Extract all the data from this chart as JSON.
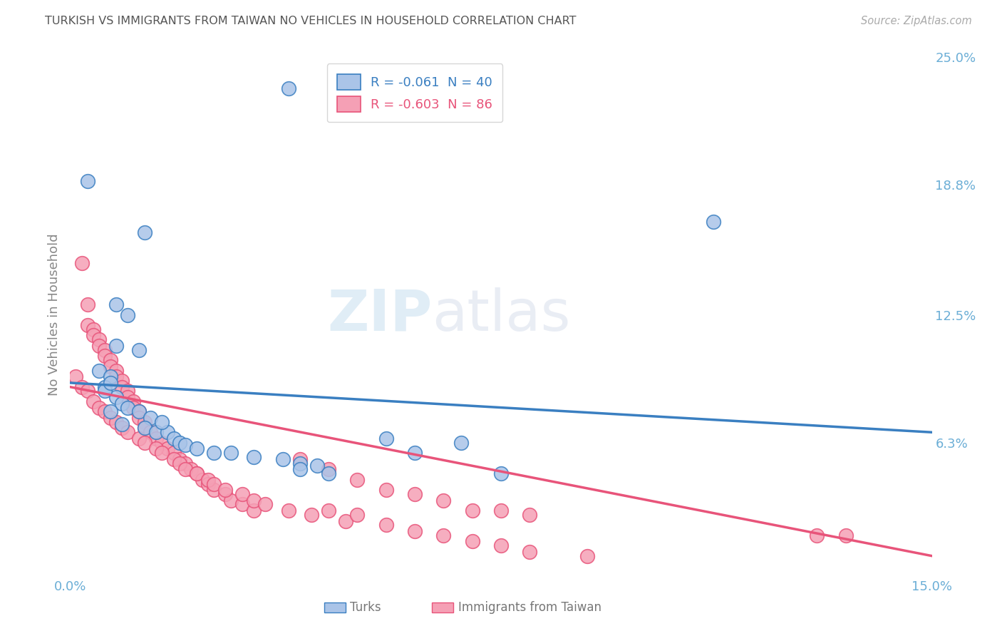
{
  "title": "TURKISH VS IMMIGRANTS FROM TAIWAN NO VEHICLES IN HOUSEHOLD CORRELATION CHART",
  "source": "Source: ZipAtlas.com",
  "ylabel_label": "No Vehicles in Household",
  "legend_entries": [
    {
      "label": "R = -0.061  N = 40",
      "color": "#aac4e8",
      "text_color": "#3a7fc1"
    },
    {
      "label": "R = -0.603  N = 86",
      "color": "#f5a0b5",
      "text_color": "#e8547a"
    }
  ],
  "watermark": "ZIPatlas",
  "background_color": "#ffffff",
  "turks_color": "#aac4e8",
  "taiwan_color": "#f5a0b5",
  "turks_line_color": "#3a7fc1",
  "taiwan_line_color": "#e8547a",
  "grid_color": "#cccccc",
  "title_color": "#555555",
  "axis_label_color": "#6baed6",
  "turks_scatter": [
    [
      0.003,
      0.19
    ],
    [
      0.038,
      0.235
    ],
    [
      0.013,
      0.165
    ],
    [
      0.008,
      0.13
    ],
    [
      0.01,
      0.125
    ],
    [
      0.008,
      0.11
    ],
    [
      0.005,
      0.098
    ],
    [
      0.007,
      0.095
    ],
    [
      0.006,
      0.09
    ],
    [
      0.008,
      0.085
    ],
    [
      0.009,
      0.082
    ],
    [
      0.01,
      0.08
    ],
    [
      0.007,
      0.078
    ],
    [
      0.012,
      0.078
    ],
    [
      0.014,
      0.075
    ],
    [
      0.009,
      0.072
    ],
    [
      0.013,
      0.07
    ],
    [
      0.015,
      0.068
    ],
    [
      0.017,
      0.068
    ],
    [
      0.006,
      0.088
    ],
    [
      0.007,
      0.092
    ],
    [
      0.018,
      0.065
    ],
    [
      0.019,
      0.063
    ],
    [
      0.02,
      0.062
    ],
    [
      0.022,
      0.06
    ],
    [
      0.025,
      0.058
    ],
    [
      0.028,
      0.058
    ],
    [
      0.032,
      0.056
    ],
    [
      0.037,
      0.055
    ],
    [
      0.04,
      0.053
    ],
    [
      0.043,
      0.052
    ],
    [
      0.055,
      0.065
    ],
    [
      0.068,
      0.063
    ],
    [
      0.04,
      0.05
    ],
    [
      0.045,
      0.048
    ],
    [
      0.016,
      0.073
    ],
    [
      0.012,
      0.108
    ],
    [
      0.112,
      0.17
    ],
    [
      0.06,
      0.058
    ],
    [
      0.075,
      0.048
    ]
  ],
  "taiwan_scatter": [
    [
      0.002,
      0.15
    ],
    [
      0.003,
      0.13
    ],
    [
      0.003,
      0.12
    ],
    [
      0.004,
      0.118
    ],
    [
      0.004,
      0.115
    ],
    [
      0.005,
      0.113
    ],
    [
      0.005,
      0.11
    ],
    [
      0.006,
      0.108
    ],
    [
      0.006,
      0.105
    ],
    [
      0.007,
      0.103
    ],
    [
      0.007,
      0.1
    ],
    [
      0.008,
      0.098
    ],
    [
      0.008,
      0.095
    ],
    [
      0.009,
      0.093
    ],
    [
      0.009,
      0.09
    ],
    [
      0.01,
      0.088
    ],
    [
      0.01,
      0.085
    ],
    [
      0.011,
      0.083
    ],
    [
      0.011,
      0.08
    ],
    [
      0.012,
      0.078
    ],
    [
      0.012,
      0.075
    ],
    [
      0.013,
      0.073
    ],
    [
      0.013,
      0.07
    ],
    [
      0.014,
      0.068
    ],
    [
      0.015,
      0.065
    ],
    [
      0.016,
      0.063
    ],
    [
      0.017,
      0.06
    ],
    [
      0.018,
      0.058
    ],
    [
      0.019,
      0.055
    ],
    [
      0.02,
      0.053
    ],
    [
      0.021,
      0.05
    ],
    [
      0.022,
      0.048
    ],
    [
      0.023,
      0.045
    ],
    [
      0.024,
      0.043
    ],
    [
      0.025,
      0.04
    ],
    [
      0.027,
      0.038
    ],
    [
      0.028,
      0.035
    ],
    [
      0.03,
      0.033
    ],
    [
      0.032,
      0.03
    ],
    [
      0.001,
      0.095
    ],
    [
      0.002,
      0.09
    ],
    [
      0.003,
      0.088
    ],
    [
      0.004,
      0.083
    ],
    [
      0.005,
      0.08
    ],
    [
      0.006,
      0.078
    ],
    [
      0.007,
      0.075
    ],
    [
      0.008,
      0.073
    ],
    [
      0.009,
      0.07
    ],
    [
      0.01,
      0.068
    ],
    [
      0.012,
      0.065
    ],
    [
      0.013,
      0.063
    ],
    [
      0.015,
      0.06
    ],
    [
      0.016,
      0.058
    ],
    [
      0.018,
      0.055
    ],
    [
      0.019,
      0.053
    ],
    [
      0.02,
      0.05
    ],
    [
      0.022,
      0.048
    ],
    [
      0.024,
      0.045
    ],
    [
      0.025,
      0.043
    ],
    [
      0.027,
      0.04
    ],
    [
      0.03,
      0.038
    ],
    [
      0.032,
      0.035
    ],
    [
      0.034,
      0.033
    ],
    [
      0.038,
      0.03
    ],
    [
      0.042,
      0.028
    ],
    [
      0.048,
      0.025
    ],
    [
      0.055,
      0.023
    ],
    [
      0.06,
      0.02
    ],
    [
      0.065,
      0.035
    ],
    [
      0.07,
      0.03
    ],
    [
      0.04,
      0.055
    ],
    [
      0.045,
      0.05
    ],
    [
      0.05,
      0.045
    ],
    [
      0.055,
      0.04
    ],
    [
      0.06,
      0.038
    ],
    [
      0.065,
      0.018
    ],
    [
      0.07,
      0.015
    ],
    [
      0.075,
      0.013
    ],
    [
      0.08,
      0.01
    ],
    [
      0.09,
      0.008
    ],
    [
      0.13,
      0.018
    ],
    [
      0.135,
      0.018
    ],
    [
      0.045,
      0.03
    ],
    [
      0.05,
      0.028
    ],
    [
      0.075,
      0.03
    ],
    [
      0.08,
      0.028
    ]
  ],
  "xlim": [
    0.0,
    0.15
  ],
  "ylim": [
    0.0,
    0.25
  ],
  "turks_trendline": [
    [
      0.0,
      0.092
    ],
    [
      0.15,
      0.068
    ]
  ],
  "taiwan_trendline": [
    [
      0.0,
      0.09
    ],
    [
      0.15,
      0.008
    ]
  ]
}
